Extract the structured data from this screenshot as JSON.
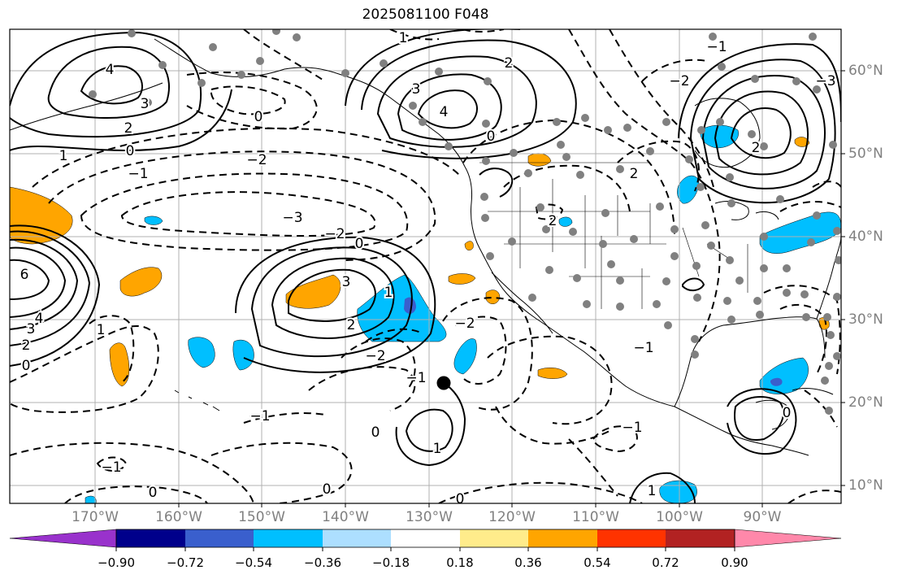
{
  "title": "2025081100 F048",
  "lat_labels": [
    "60°N",
    "50°N",
    "40°N",
    "30°N",
    "20°N",
    "10°N"
  ],
  "lon_labels": [
    "170°W",
    "160°W",
    "150°W",
    "140°W",
    "130°W",
    "120°W",
    "110°W",
    "100°W",
    "90°W"
  ],
  "colorbar": {
    "ticks": [
      "−0.90",
      "−0.72",
      "−0.54",
      "−0.36",
      "−0.18",
      "0.18",
      "0.36",
      "0.54",
      "0.72",
      "0.90"
    ],
    "colors": [
      "#9932CC",
      "#00008B",
      "#3A5FCD",
      "#00BFFF",
      "#ADDFFF",
      "#FFFFFF",
      "#FFEC8B",
      "#FFA500",
      "#FF3300",
      "#B22222",
      "#FF88AA"
    ]
  },
  "contour_labels": [
    "4",
    "3",
    "2",
    "1",
    "0",
    "−1",
    "−2",
    "−3",
    "6",
    "4",
    "3",
    "2",
    "1",
    "0",
    "−1",
    "−2",
    "2",
    "3",
    "4",
    "3",
    "2",
    "1",
    "0",
    "−2",
    "3",
    "2",
    "1",
    "0",
    "−1",
    "0",
    "−1",
    "0",
    "−1",
    "0",
    "−1",
    "0",
    "2",
    "2",
    "−2",
    "−2",
    "−3",
    "−1",
    "0",
    "−1",
    "0",
    "1",
    "2",
    "1"
  ],
  "fill_colors": {
    "positive_low": "#FFA500",
    "negative_low": "#00BFFF",
    "negative_high": "#3A5FCD"
  }
}
